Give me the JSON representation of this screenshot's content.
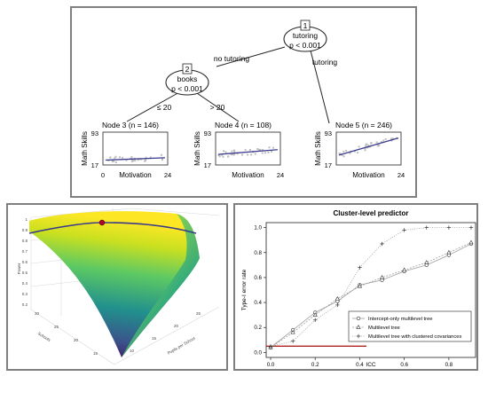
{
  "tree": {
    "nodes": [
      {
        "id": "1",
        "split": "tutoring",
        "p": "p < 0.001"
      },
      {
        "id": "2",
        "split": "books",
        "p": "p < 0.001"
      }
    ],
    "edges": {
      "no_tutoring": "no tutoring",
      "tutoring": "tutoring",
      "le20": "≤ 20",
      "gt20": "> 20"
    },
    "leaves": [
      {
        "title": "Node 3 (n = 146)",
        "intercept": 28,
        "slope": 0.25
      },
      {
        "title": "Node 4 (n = 108)",
        "intercept": 41,
        "slope": 0.5
      },
      {
        "title": "Node 5 (n = 246)",
        "intercept": 38,
        "slope": 1.8
      }
    ],
    "leaf_axes": {
      "ylabel": "Math Skills",
      "xlabel": "Motivation",
      "yticks": [
        "93",
        "17"
      ],
      "xticks": [
        "0",
        "24"
      ],
      "ylim": [
        17,
        93
      ],
      "xlim": [
        0,
        24
      ]
    },
    "colors": {
      "line": "#3b3b8f",
      "points": "#bdbdbd"
    }
  },
  "surface": {
    "axis_power": "Power",
    "axis_schools": "Schools",
    "axis_pupils": "Pupils per School",
    "z_ticks": [
      "1",
      "0.9",
      "0.8",
      "0.7",
      "0.6",
      "0.5",
      "0.4",
      "0.3",
      "0.2"
    ],
    "schools_ticks": [
      "30",
      "25",
      "20",
      "15"
    ],
    "pupils_ticks": [
      "25",
      "20",
      "15",
      "10"
    ],
    "colors": {
      "curve": "#3a3a8c",
      "marker": "#b3002d"
    }
  },
  "chart_data": [
    {
      "type": "line",
      "title": "Cluster-level predictor",
      "xlabel": "ICC",
      "ylabel": "Type-I error rate",
      "xlim": [
        -0.02,
        0.92
      ],
      "ylim": [
        -0.04,
        1.04
      ],
      "xticks": [
        "0.0",
        "0.2",
        "0.4",
        "0.6",
        "0.8"
      ],
      "yticks": [
        "0.0",
        "0.2",
        "0.4",
        "0.6",
        "0.8",
        "1.0"
      ],
      "x": [
        0,
        0.1,
        0.2,
        0.3,
        0.4,
        0.5,
        0.6,
        0.7,
        0.8,
        0.9
      ],
      "reference_line": 0.05,
      "legend_position": "bottom-right",
      "series": [
        {
          "name": "Intercept-only multilevel tree",
          "marker": "circle",
          "values": [
            0.04,
            0.18,
            0.32,
            0.41,
            0.54,
            0.58,
            0.65,
            0.7,
            0.78,
            0.87
          ]
        },
        {
          "name": "Multilevel tree",
          "marker": "triangle",
          "values": [
            0.04,
            0.16,
            0.3,
            0.43,
            0.53,
            0.6,
            0.66,
            0.72,
            0.8,
            0.88
          ]
        },
        {
          "name": "Multilevel tree with clustered covariances",
          "marker": "plus",
          "values": [
            0.05,
            0.09,
            0.26,
            0.38,
            0.68,
            0.87,
            0.98,
            1.0,
            1.0,
            1.0
          ]
        }
      ],
      "colors": {
        "reference": "#b22222",
        "line": "#9e9e9e",
        "marker": "#333333"
      }
    }
  ]
}
